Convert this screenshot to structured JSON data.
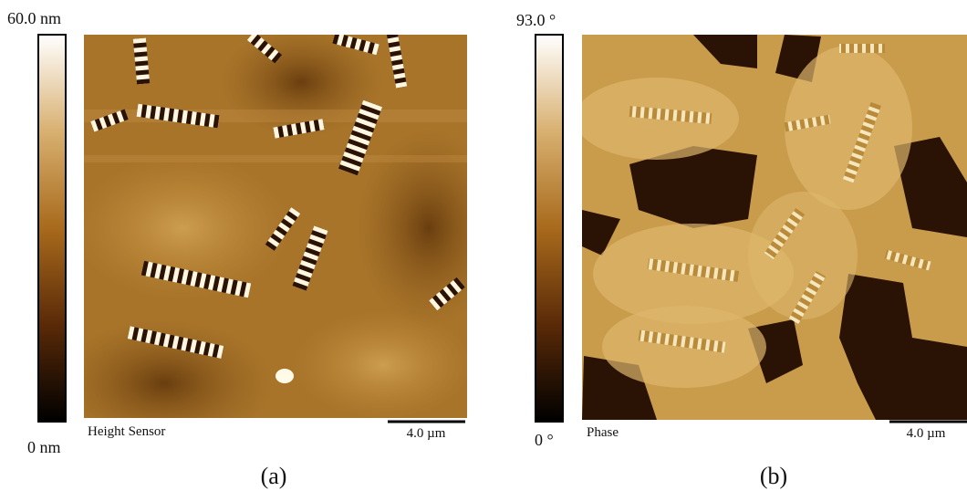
{
  "panels": [
    {
      "colorbar_max": "60.0 nm",
      "colorbar_min": "0 nm",
      "channel": "Height Sensor",
      "scale_bar": "4.0 µm",
      "caption": "(a)"
    },
    {
      "colorbar_max": "93.0 °",
      "colorbar_min": "0 °",
      "channel": "Phase",
      "scale_bar": "4.0 µm",
      "caption": "(b)"
    }
  ]
}
